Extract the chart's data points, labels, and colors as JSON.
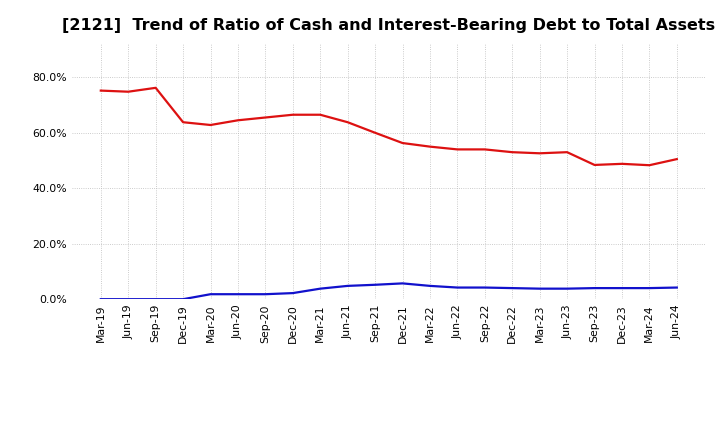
{
  "title": "[2121]  Trend of Ratio of Cash and Interest-Bearing Debt to Total Assets",
  "x_labels": [
    "Mar-19",
    "Jun-19",
    "Sep-19",
    "Dec-19",
    "Mar-20",
    "Jun-20",
    "Sep-20",
    "Dec-20",
    "Mar-21",
    "Jun-21",
    "Sep-21",
    "Dec-21",
    "Mar-22",
    "Jun-22",
    "Sep-22",
    "Dec-22",
    "Mar-23",
    "Jun-23",
    "Sep-23",
    "Dec-23",
    "Mar-24",
    "Jun-24"
  ],
  "cash": [
    0.752,
    0.748,
    0.762,
    0.638,
    0.628,
    0.645,
    0.655,
    0.665,
    0.665,
    0.638,
    0.6,
    0.563,
    0.55,
    0.54,
    0.54,
    0.53,
    0.526,
    0.53,
    0.484,
    0.488,
    0.483,
    0.505
  ],
  "ibd": [
    0.0,
    0.0,
    0.0,
    0.0,
    0.018,
    0.018,
    0.018,
    0.022,
    0.038,
    0.048,
    0.052,
    0.057,
    0.048,
    0.042,
    0.042,
    0.04,
    0.038,
    0.038,
    0.04,
    0.04,
    0.04,
    0.042
  ],
  "cash_color": "#dd1111",
  "ibd_color": "#1111cc",
  "background_color": "#ffffff",
  "plot_bg_color": "#ffffff",
  "grid_color": "#bbbbbb",
  "ylim": [
    0.0,
    0.92
  ],
  "yticks": [
    0.0,
    0.2,
    0.4,
    0.6,
    0.8
  ],
  "title_fontsize": 11.5,
  "line_width": 1.6,
  "tick_fontsize": 7.8,
  "legend_fontsize": 9.5
}
